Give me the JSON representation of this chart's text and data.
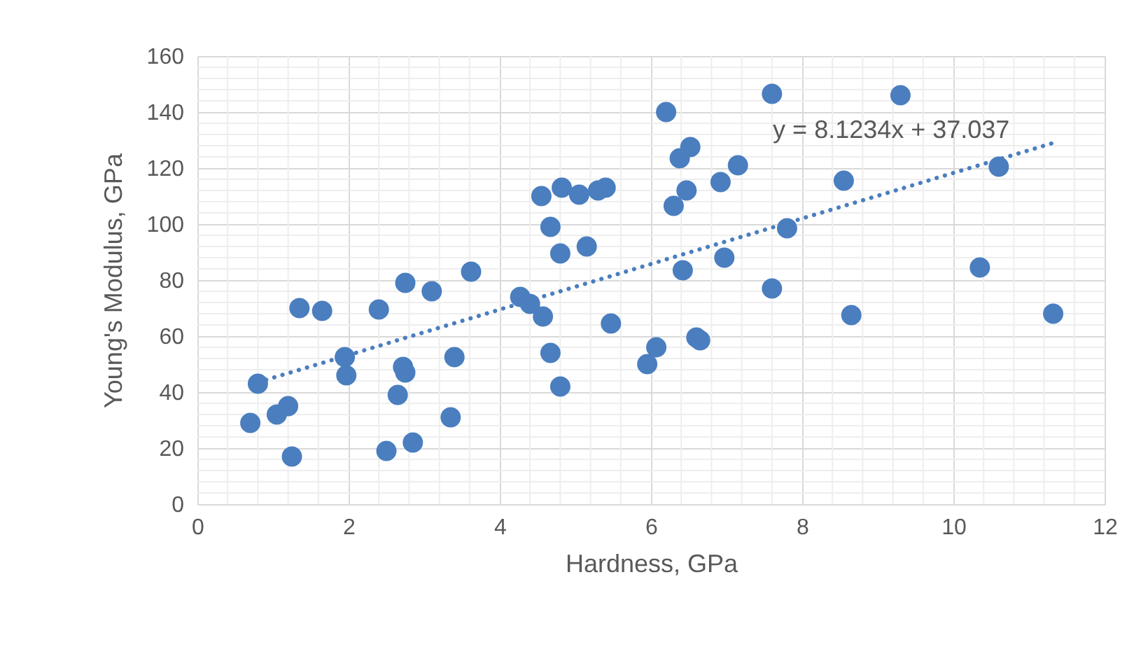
{
  "chart_data": {
    "type": "scatter",
    "xlabel": "Hardness, GPa",
    "ylabel": "Young's Modulus, GPa",
    "xlim": [
      0,
      12
    ],
    "xticks": [
      0,
      2,
      4,
      6,
      8,
      10,
      12
    ],
    "ylim": [
      0,
      160
    ],
    "yticks": [
      0,
      20,
      40,
      60,
      80,
      100,
      120,
      140,
      160
    ],
    "grid": true,
    "marker": "circle",
    "annotations": [
      "y = 8.1234x + 37.037"
    ],
    "series": [
      {
        "color": "#4a7ebf",
        "x": [
          0.7,
          0.8,
          1.05,
          1.2,
          1.25,
          1.35,
          1.65,
          1.95,
          1.97,
          2.4,
          2.5,
          2.65,
          2.72,
          2.75,
          2.75,
          2.85,
          3.1,
          3.35,
          3.4,
          3.62,
          4.27,
          4.4,
          4.57,
          4.55,
          4.67,
          4.67,
          4.8,
          4.82,
          4.8,
          5.05,
          5.15,
          5.3,
          5.4,
          5.47,
          5.95,
          6.07,
          6.2,
          6.3,
          6.38,
          6.42,
          6.47,
          6.52,
          6.6,
          6.65,
          6.92,
          6.97,
          7.15,
          7.6,
          7.6,
          7.8,
          8.55,
          8.65,
          9.3,
          10.35,
          10.6,
          11.32
        ],
        "values": [
          29,
          43,
          32,
          35,
          17,
          70,
          69,
          52.5,
          46,
          69.5,
          19,
          39,
          49,
          79,
          47,
          22,
          76,
          31,
          52.5,
          83,
          74,
          71.5,
          67,
          110,
          99,
          54,
          42,
          113,
          89.5,
          110.5,
          92,
          112,
          113,
          64.5,
          50,
          56,
          140,
          106.5,
          123.5,
          83.5,
          112,
          127.5,
          59.5,
          58.5,
          115,
          88,
          121,
          146.5,
          77,
          98.5,
          115.5,
          67.5,
          146,
          84.5,
          120.5,
          68
        ]
      },
      {
        "type": "line",
        "color": "#4a7ebf",
        "line_style": "dotted",
        "marker": "none",
        "x": [
          0.8,
          11.3
        ],
        "values": [
          43.5,
          128.8
        ]
      }
    ]
  }
}
